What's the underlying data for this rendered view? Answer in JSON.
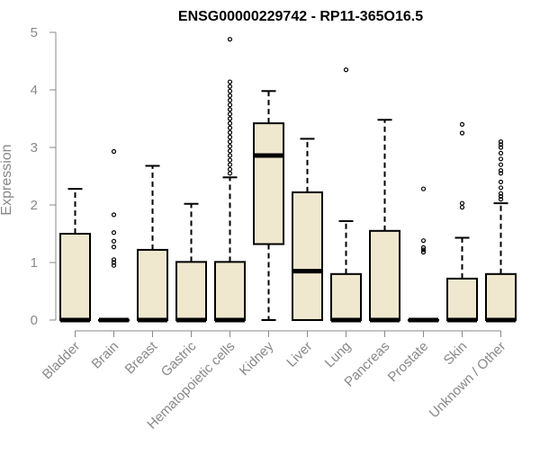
{
  "chart_data": {
    "type": "boxplot",
    "title": "ENSG00000229742 - RP11-365O16.5",
    "xlabel": "",
    "ylabel": "Expression",
    "ylim": [
      0,
      5
    ],
    "yticks": [
      0,
      1,
      2,
      3,
      4,
      5
    ],
    "grid": false,
    "legend": "none",
    "colors": {
      "box_fill": "#efe8cf",
      "box_stroke": "#000000",
      "axis": "#888888",
      "label": "#888888",
      "title": "#000000"
    },
    "categories": [
      "Bladder",
      "Brain",
      "Breast",
      "Gastric",
      "Hematopoietic cells",
      "Kidney",
      "Liver",
      "Lung",
      "Pancreas",
      "Prostate",
      "Skin",
      "Unknown / Other"
    ],
    "boxes": [
      {
        "min": 0,
        "q1": 0,
        "median": 0,
        "q3": 1.5,
        "max": 2.28,
        "outliers": []
      },
      {
        "min": 0,
        "q1": 0,
        "median": 0,
        "q3": 0,
        "max": 0,
        "outliers": [
          0.95,
          1.0,
          1.05,
          1.27,
          1.37,
          1.52,
          1.83,
          2.93
        ]
      },
      {
        "min": 0,
        "q1": 0,
        "median": 0,
        "q3": 1.22,
        "max": 2.68,
        "outliers": []
      },
      {
        "min": 0,
        "q1": 0,
        "median": 0,
        "q3": 1.01,
        "max": 2.02,
        "outliers": []
      },
      {
        "min": 0,
        "q1": 0,
        "median": 0,
        "q3": 1.01,
        "max": 2.48,
        "outliers": [
          2.55,
          2.62,
          2.7,
          2.78,
          2.86,
          2.94,
          3.02,
          3.1,
          3.18,
          3.26,
          3.34,
          3.42,
          3.5,
          3.58,
          3.66,
          3.74,
          3.82,
          3.9,
          3.98,
          4.06,
          4.14,
          4.88
        ]
      },
      {
        "min": 0,
        "q1": 1.32,
        "median": 2.86,
        "q3": 3.42,
        "max": 3.98,
        "outliers": []
      },
      {
        "min": 0,
        "q1": 0,
        "median": 0.85,
        "q3": 2.22,
        "max": 3.15,
        "outliers": []
      },
      {
        "min": 0,
        "q1": 0,
        "median": 0,
        "q3": 0.8,
        "max": 1.72,
        "outliers": [
          4.35
        ]
      },
      {
        "min": 0,
        "q1": 0,
        "median": 0,
        "q3": 1.55,
        "max": 3.48,
        "outliers": []
      },
      {
        "min": 0,
        "q1": 0,
        "median": 0,
        "q3": 0,
        "max": 0,
        "outliers": [
          1.18,
          1.22,
          1.26,
          1.38,
          2.28
        ]
      },
      {
        "min": 0,
        "q1": 0,
        "median": 0,
        "q3": 0.72,
        "max": 1.43,
        "outliers": [
          1.96,
          2.03,
          3.25,
          3.4
        ]
      },
      {
        "min": 0,
        "q1": 0,
        "median": 0,
        "q3": 0.8,
        "max": 2.03,
        "outliers": [
          2.1,
          2.15,
          2.2,
          2.3,
          2.4,
          2.55,
          2.6,
          2.7,
          2.8,
          2.9,
          3.0,
          3.05,
          3.1
        ]
      }
    ]
  }
}
